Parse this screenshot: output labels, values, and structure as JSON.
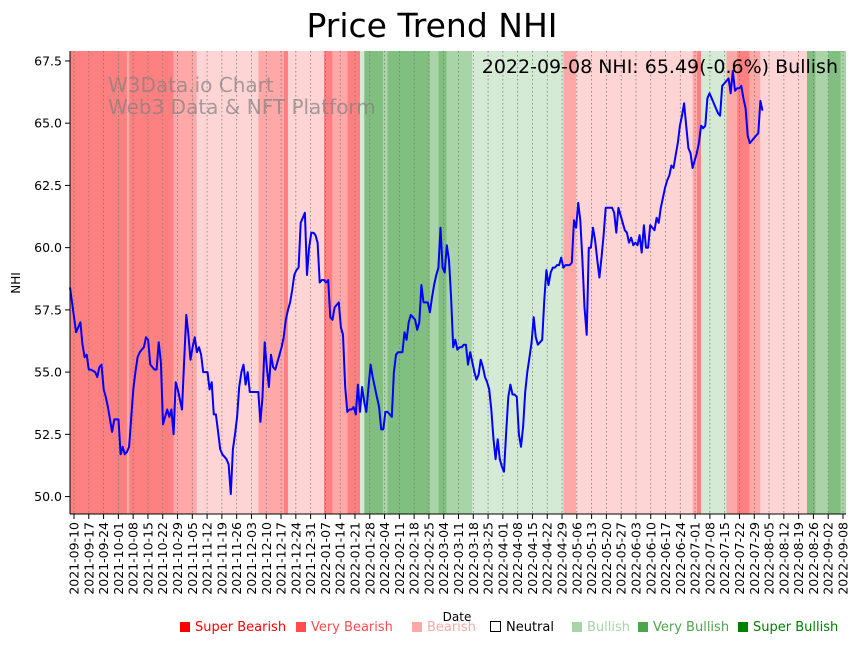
{
  "chart_data": {
    "type": "line",
    "title": "Price Trend NHI",
    "annotation": "2022-09-08 NHI: 65.49(-0.6%) Bullish",
    "watermark": [
      "W3Data.io Chart",
      "Web3 Data & NFT Platform"
    ],
    "xlabel": "Date",
    "ylabel": "NHI",
    "ylim": [
      49.3,
      67.9
    ],
    "yticks": [
      "50.0",
      "52.5",
      "55.0",
      "57.5",
      "60.0",
      "62.5",
      "65.0",
      "67.5"
    ],
    "ytick_values": [
      50.0,
      52.5,
      55.0,
      57.5,
      60.0,
      62.5,
      65.0,
      67.5
    ],
    "x_start": "2021-09-10",
    "x_end": "2022-09-08",
    "xticks": [
      "2021-09-10",
      "2021-09-17",
      "2021-09-24",
      "2021-10-01",
      "2021-10-08",
      "2021-10-15",
      "2021-10-22",
      "2021-10-29",
      "2021-11-05",
      "2021-11-12",
      "2021-11-19",
      "2021-11-26",
      "2021-12-03",
      "2021-12-10",
      "2021-12-17",
      "2021-12-24",
      "2021-12-31",
      "2022-01-07",
      "2022-01-14",
      "2022-01-21",
      "2022-01-28",
      "2022-02-04",
      "2022-02-11",
      "2022-02-18",
      "2022-02-25",
      "2022-03-04",
      "2022-03-11",
      "2022-03-18",
      "2022-03-25",
      "2022-04-01",
      "2022-04-08",
      "2022-04-15",
      "2022-04-22",
      "2022-04-29",
      "2022-05-06",
      "2022-05-13",
      "2022-05-20",
      "2022-05-27",
      "2022-06-03",
      "2022-06-10",
      "2022-06-17",
      "2022-06-24",
      "2022-07-01",
      "2022-07-08",
      "2022-07-15",
      "2022-07-22",
      "2022-07-29",
      "2022-08-05",
      "2022-08-12",
      "2022-08-19",
      "2022-08-26",
      "2022-09-02",
      "2022-09-08"
    ],
    "grid": "x-dotted",
    "legend_position": "bottom-right",
    "series": [
      {
        "name": "NHI",
        "color": "#0000ff",
        "days": [
          0,
          1,
          3,
          4,
          5,
          6,
          7,
          8,
          10,
          11,
          12,
          13,
          14,
          15,
          16,
          17,
          18,
          19,
          20,
          21,
          22,
          23,
          24,
          25,
          26,
          28,
          29,
          30,
          31,
          32,
          33,
          34,
          35,
          36,
          37,
          38,
          39,
          40,
          41,
          42,
          43,
          44,
          45,
          46,
          47,
          48,
          49,
          50,
          51,
          52,
          53,
          54,
          55,
          56,
          57,
          58,
          59,
          60,
          61,
          62,
          63,
          64,
          65,
          66,
          67,
          68,
          69,
          70,
          71,
          72,
          73,
          74,
          75,
          76,
          77,
          78,
          79,
          80,
          81,
          82,
          83,
          84,
          85,
          86,
          87,
          88,
          89,
          90,
          91,
          92,
          93,
          94,
          95,
          96,
          97,
          98,
          99,
          100,
          101,
          102,
          103,
          104,
          105,
          106,
          107,
          108,
          109,
          110,
          111,
          112,
          113,
          114,
          115,
          116,
          117,
          118,
          119,
          120,
          121,
          122,
          123,
          124,
          125,
          126,
          127,
          128,
          129,
          130,
          131,
          132,
          133,
          134,
          135,
          136,
          137,
          138,
          139,
          140,
          141,
          142,
          143,
          144,
          145,
          146,
          147,
          148,
          149,
          150,
          151,
          152,
          153,
          154,
          155,
          156,
          157,
          158,
          159,
          160,
          161,
          162,
          163,
          164,
          165,
          166,
          167,
          168,
          169,
          170,
          171,
          172,
          173,
          174,
          175,
          176,
          177,
          178,
          179,
          180,
          181,
          182,
          183,
          184,
          185,
          186,
          187,
          188,
          189,
          190,
          191,
          192,
          193,
          194,
          195,
          196,
          197,
          198,
          199,
          200,
          201,
          202,
          203,
          204,
          205,
          206,
          207,
          208,
          209,
          210,
          211,
          212,
          213,
          214,
          215,
          216,
          217,
          218,
          219,
          220,
          221,
          222,
          223,
          224,
          225,
          226,
          227,
          228,
          229,
          230,
          231,
          232,
          233,
          234,
          235,
          236,
          237,
          238,
          239,
          240,
          241,
          242,
          243,
          244,
          245,
          246,
          247,
          248,
          249,
          250,
          251,
          252,
          253,
          254,
          255,
          256,
          257,
          258,
          259,
          260,
          261,
          262,
          263,
          264,
          265,
          266,
          267,
          268,
          269,
          270,
          271,
          272,
          273,
          274,
          275,
          276,
          277,
          278,
          279,
          280,
          281,
          282,
          283,
          284,
          285,
          286,
          287,
          288,
          289,
          290,
          291,
          292,
          293,
          294,
          295,
          296,
          297,
          298,
          299,
          300,
          301,
          302,
          303,
          304,
          305,
          306,
          307,
          308,
          309,
          310,
          311,
          312,
          313,
          314,
          315,
          316,
          317,
          318,
          319,
          320,
          321,
          322,
          323,
          324,
          325,
          326,
          327,
          328,
          329,
          330,
          331,
          332,
          333,
          334,
          335,
          336,
          337,
          338,
          339,
          340,
          341,
          342,
          343,
          344,
          345,
          346,
          347,
          348,
          349,
          350,
          351,
          352,
          353,
          354,
          355,
          356,
          357,
          358,
          359,
          360,
          361,
          362,
          363
        ],
        "values": [
          58.4,
          56.6,
          57.0,
          56.1,
          55.6,
          55.7,
          55.1,
          55.1,
          55.0,
          54.8,
          55.2,
          55.3,
          54.3,
          54.0,
          53.6,
          53.1,
          52.6,
          53.1,
          53.1,
          53.1,
          51.7,
          52.0,
          51.7,
          51.8,
          52.0,
          54.3,
          55.0,
          55.6,
          55.8,
          55.9,
          56.0,
          56.4,
          56.3,
          55.3,
          55.2,
          55.1,
          55.1,
          56.2,
          55.4,
          52.9,
          53.2,
          53.5,
          53.2,
          53.5,
          52.5,
          54.6,
          54.3,
          53.9,
          53.5,
          55.5,
          57.3,
          56.5,
          55.5,
          56.0,
          56.4,
          55.8,
          56.0,
          55.7,
          55.0,
          55.0,
          55.0,
          54.3,
          54.6,
          53.3,
          53.3,
          52.6,
          51.9,
          51.7,
          51.6,
          51.5,
          51.3,
          50.1,
          51.9,
          52.5,
          53.2,
          54.4,
          55.0,
          55.3,
          54.5,
          55.0,
          54.2,
          54.2,
          54.2,
          54.2,
          54.2,
          53.0,
          54.0,
          56.2,
          55.2,
          54.4,
          55.7,
          55.2,
          55.1,
          55.4,
          55.7,
          56.0,
          56.4,
          57.1,
          57.5,
          57.8,
          58.3,
          58.9,
          59.1,
          59.2,
          61.0,
          61.2,
          61.4,
          58.9,
          60.0,
          60.6,
          60.6,
          60.5,
          60.2,
          58.6,
          58.7,
          58.7,
          58.6,
          58.7,
          57.2,
          57.1,
          57.6,
          57.7,
          57.8,
          56.8,
          56.5,
          54.4,
          53.4,
          53.5,
          53.5,
          53.6,
          53.3,
          54.5,
          53.4,
          54.4,
          53.8,
          53.4,
          54.4,
          55.3,
          54.8,
          54.4,
          54.0,
          53.6,
          52.7,
          52.7,
          53.4,
          53.4,
          53.3,
          53.2,
          55.0,
          55.7,
          55.8,
          55.8,
          55.8,
          56.6,
          56.3,
          57.0,
          57.3,
          57.2,
          57.1,
          56.7,
          57.0,
          58.5,
          57.8,
          57.8,
          57.8,
          57.4,
          58.0,
          58.5,
          58.9,
          59.2,
          60.8,
          59.2,
          59.0,
          60.1,
          59.5,
          58.0,
          56.0,
          56.3,
          55.9,
          56.0,
          56.0,
          56.1,
          56.1,
          55.3,
          55.8,
          55.4,
          55.0,
          54.7,
          54.9,
          55.5,
          55.2,
          54.8,
          54.6,
          54.3,
          53.5,
          52.3,
          51.5,
          52.3,
          51.5,
          51.2,
          51.0,
          52.6,
          54.0,
          54.5,
          54.1,
          54.1,
          54.0,
          52.5,
          52.0,
          52.8,
          54.2,
          55.0,
          55.6,
          56.2,
          57.2,
          56.4,
          56.1,
          56.2,
          56.3,
          57.9,
          59.1,
          58.5,
          59.0,
          59.2,
          59.2,
          59.3,
          59.3,
          59.6,
          59.2,
          59.3,
          59.3,
          59.3,
          59.4,
          61.1,
          60.8,
          61.8,
          61.1,
          59.5,
          57.6,
          56.5,
          60.0,
          60.0,
          60.8,
          60.3,
          59.5,
          58.8,
          59.6,
          60.5,
          61.6,
          61.6,
          61.6,
          61.6,
          61.4,
          60.6,
          61.6,
          61.3,
          61.0,
          60.7,
          60.6,
          60.2,
          60.4,
          60.1,
          60.2,
          60.1,
          60.5,
          59.8,
          60.9,
          60.0,
          60.0,
          60.9,
          60.8,
          60.7,
          61.2,
          61.0,
          61.6,
          62.0,
          62.4,
          62.7,
          62.9,
          63.3,
          63.2,
          63.7,
          64.2,
          64.9,
          65.3,
          65.8,
          64.9,
          64.0,
          63.8,
          63.2,
          63.5,
          63.8,
          64.2,
          64.9,
          64.8,
          64.9,
          66.0,
          66.2,
          66.0,
          65.8,
          65.6,
          65.4,
          65.3,
          66.5,
          66.6,
          66.7,
          66.8,
          66.2,
          67.1,
          66.3,
          66.4,
          66.4,
          66.5,
          66.0,
          65.6,
          64.5,
          64.2,
          64.3,
          64.4,
          64.5,
          64.6,
          65.9,
          65.5
        ]
      }
    ],
    "sentiment_bands": [
      {
        "from": 0,
        "to": 25,
        "level": "super_bearish_bg"
      },
      {
        "from": 25,
        "to": 26,
        "level": "very_bearish_bg"
      },
      {
        "from": 26,
        "to": 47,
        "level": "super_bearish_bg"
      },
      {
        "from": 47,
        "to": 58,
        "level": "very_bearish_bg"
      },
      {
        "from": 58,
        "to": 87,
        "level": "bearish_bg"
      },
      {
        "from": 87,
        "to": 99,
        "level": "very_bearish_bg"
      },
      {
        "from": 99,
        "to": 101,
        "level": "super_bearish_bg"
      },
      {
        "from": 101,
        "to": 118,
        "level": "bearish_bg"
      },
      {
        "from": 118,
        "to": 122,
        "level": "super_bearish_bg"
      },
      {
        "from": 122,
        "to": 129,
        "level": "very_bearish_bg"
      },
      {
        "from": 129,
        "to": 135,
        "level": "super_bearish_bg"
      },
      {
        "from": 135,
        "to": 137,
        "level": "neutral_bg"
      },
      {
        "from": 137,
        "to": 146,
        "level": "very_bullish_bg"
      },
      {
        "from": 146,
        "to": 148,
        "level": "bullish_bg"
      },
      {
        "from": 148,
        "to": 168,
        "level": "very_bullish_bg"
      },
      {
        "from": 168,
        "to": 172,
        "level": "bullish_bg"
      },
      {
        "from": 172,
        "to": 176,
        "level": "very_bullish_bg"
      },
      {
        "from": 176,
        "to": 188,
        "level": "bullish_bg"
      },
      {
        "from": 188,
        "to": 231,
        "level": "light_bullish_bg"
      },
      {
        "from": 231,
        "to": 237,
        "level": "bearish_mid_bg"
      },
      {
        "from": 237,
        "to": 292,
        "level": "bearish_bg"
      },
      {
        "from": 292,
        "to": 294,
        "level": "very_bearish_bg"
      },
      {
        "from": 294,
        "to": 296,
        "level": "super_bearish_bg"
      },
      {
        "from": 296,
        "to": 308,
        "level": "light_bullish_bg"
      },
      {
        "from": 308,
        "to": 313,
        "level": "very_bearish_bg"
      },
      {
        "from": 313,
        "to": 319,
        "level": "super_bearish_bg"
      },
      {
        "from": 319,
        "to": 324,
        "level": "very_bearish_bg"
      },
      {
        "from": 324,
        "to": 346,
        "level": "bearish_bg"
      },
      {
        "from": 346,
        "to": 350,
        "level": "very_bullish_bg"
      },
      {
        "from": 350,
        "to": 356,
        "level": "bullish_bg"
      },
      {
        "from": 356,
        "to": 362,
        "level": "very_bullish_bg"
      },
      {
        "from": 362,
        "to": 364,
        "level": "bullish_bg"
      }
    ],
    "band_colors": {
      "super_bearish_bg": "#ff8080",
      "very_bearish_bg": "#ffa8a8",
      "bearish_bg": "#ffd4d4",
      "bearish_mid_bg": "#ffa8a8",
      "neutral_bg": "#d4ead4",
      "light_bullish_bg": "#d4ead4",
      "bullish_bg": "#a8d4a8",
      "very_bullish_bg": "#80bf80"
    }
  },
  "legend": [
    {
      "label": "Super Bearish",
      "color": "#ff0000",
      "text_color": "#ff0000",
      "hollow": false
    },
    {
      "label": "Very Bearish",
      "color": "#ff4d4d",
      "text_color": "#ff4d4d",
      "hollow": false
    },
    {
      "label": "Bearish",
      "color": "#ffa8a8",
      "text_color": "#ffa8a8",
      "hollow": false
    },
    {
      "label": "Neutral",
      "color": "#000000",
      "text_color": "#000000",
      "hollow": true
    },
    {
      "label": "Bullish",
      "color": "#a8d4a8",
      "text_color": "#a8d4a8",
      "hollow": false
    },
    {
      "label": "Very Bullish",
      "color": "#4da64d",
      "text_color": "#4da64d",
      "hollow": false
    },
    {
      "label": "Super Bullish",
      "color": "#008000",
      "text_color": "#008000",
      "hollow": false
    }
  ]
}
